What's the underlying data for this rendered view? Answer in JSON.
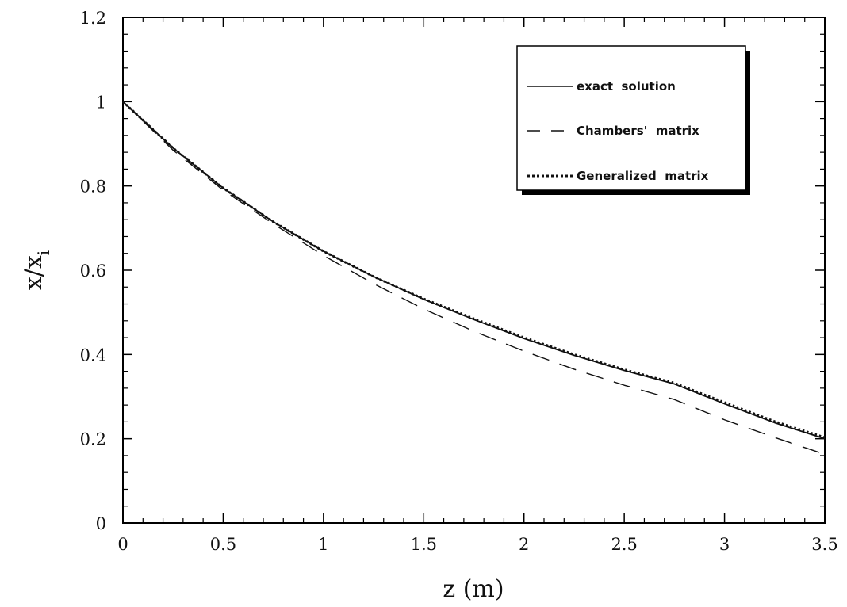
{
  "chart_data": {
    "type": "line",
    "title": "",
    "xlabel": "z (m)",
    "ylabel_main": "x/x",
    "ylabel_sub": "i",
    "xlim": [
      0,
      3.5
    ],
    "ylim": [
      0,
      1.2
    ],
    "x_ticks": [
      {
        "value": 0,
        "label": "0"
      },
      {
        "value": 0.5,
        "label": "0.5"
      },
      {
        "value": 1,
        "label": "1"
      },
      {
        "value": 1.5,
        "label": "1.5"
      },
      {
        "value": 2,
        "label": "2"
      },
      {
        "value": 2.5,
        "label": "2.5"
      },
      {
        "value": 3,
        "label": "3"
      },
      {
        "value": 3.5,
        "label": "3.5"
      }
    ],
    "y_ticks": [
      {
        "value": 0,
        "label": "0"
      },
      {
        "value": 0.2,
        "label": "0.2"
      },
      {
        "value": 0.4,
        "label": "0.4"
      },
      {
        "value": 0.6,
        "label": "0.6"
      },
      {
        "value": 0.8,
        "label": "0.8"
      },
      {
        "value": 1,
        "label": "1"
      },
      {
        "value": 1.2,
        "label": "1.2"
      }
    ],
    "x_minor_step": 0.1,
    "y_minor_step": 0.04,
    "grid": false,
    "legend_position": "top-right",
    "x": [
      0,
      0.25,
      0.5,
      0.75,
      1.0,
      1.25,
      1.5,
      1.75,
      2.0,
      2.25,
      2.5,
      2.75,
      3.0,
      3.25,
      3.5
    ],
    "series": [
      {
        "name": "exact  solution",
        "style": "solid",
        "values": [
          1.0,
          0.89,
          0.795,
          0.715,
          0.645,
          0.585,
          0.531,
          0.483,
          0.438,
          0.398,
          0.362,
          0.33,
          0.283,
          0.238,
          0.2
        ]
      },
      {
        "name": "Chambers'  matrix",
        "style": "dashed",
        "values": [
          1.0,
          0.885,
          0.79,
          0.71,
          0.635,
          0.568,
          0.508,
          0.455,
          0.408,
          0.365,
          0.327,
          0.293,
          0.245,
          0.203,
          0.163
        ]
      },
      {
        "name": "Generalized  matrix",
        "style": "dotted",
        "values": [
          1.0,
          0.89,
          0.795,
          0.715,
          0.645,
          0.585,
          0.532,
          0.485,
          0.44,
          0.4,
          0.364,
          0.332,
          0.286,
          0.241,
          0.203
        ]
      }
    ],
    "colors": {
      "line": "#111111",
      "frame": "#000000"
    }
  }
}
